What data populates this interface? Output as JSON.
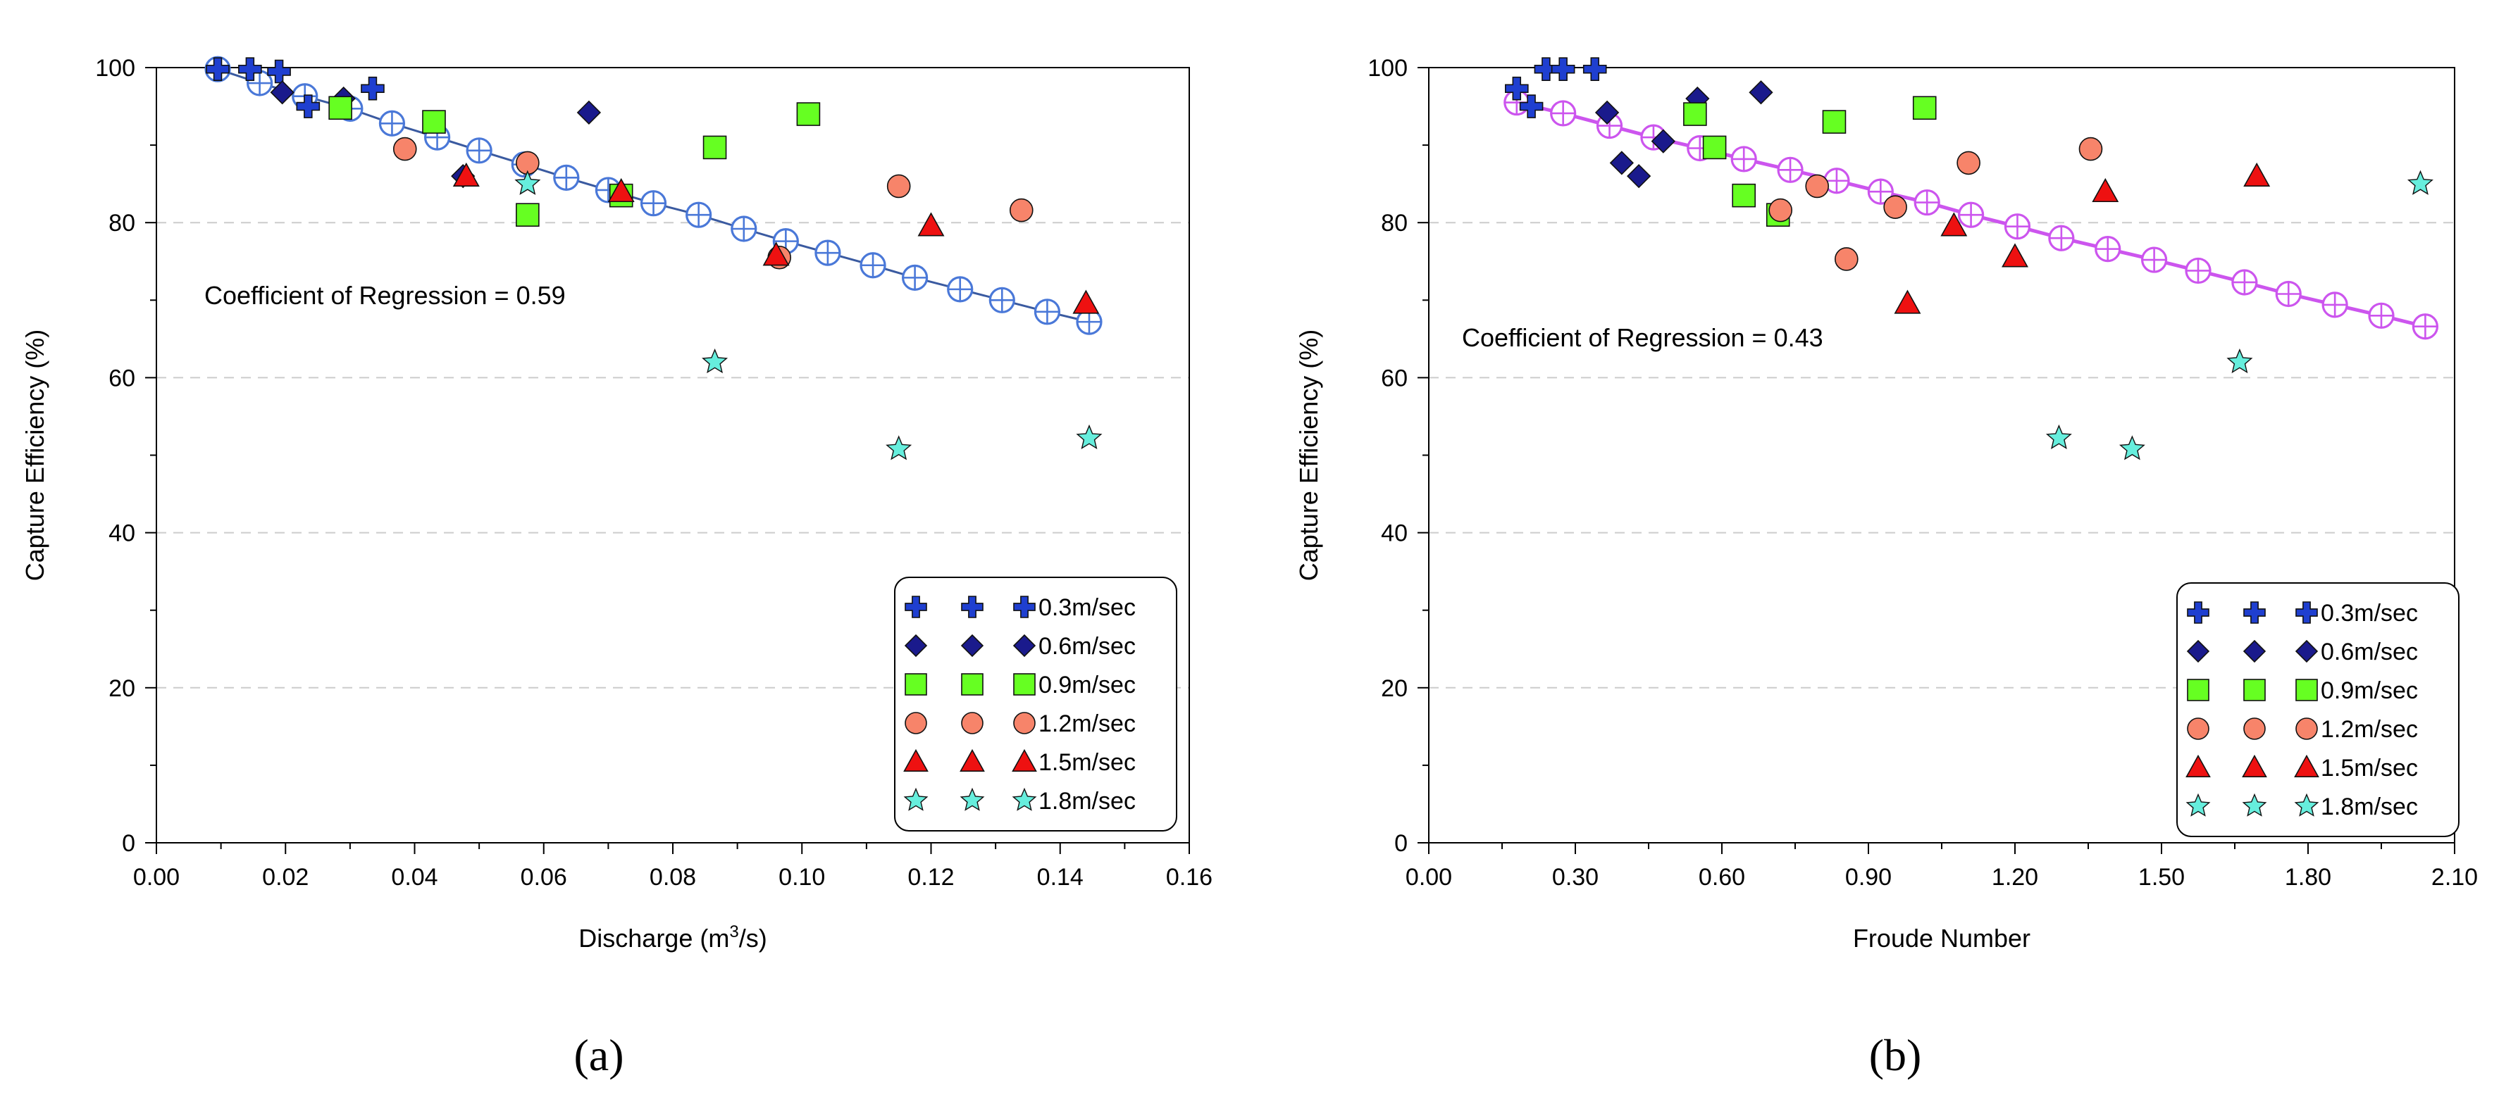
{
  "colors": {
    "s03": "#1f3fd0",
    "s06": "#1a1a8c",
    "s09": "#66ff22",
    "s12": "#f7846a",
    "s15": "#ee1111",
    "s18": "#66eedd",
    "fit_a": "#4a78d8",
    "fit_a_line": "#3a5aa0",
    "fit_b": "#cc55ee",
    "grid": "#cccccc"
  },
  "chart_data": [
    {
      "id": "a",
      "type": "scatter",
      "panel_label": "(a)",
      "xlabel_main": "Discharge (m",
      "xlabel_sup": "3",
      "xlabel_tail": "/s)",
      "ylabel": "Capture Efficiency (%)",
      "xlim": [
        0,
        0.16
      ],
      "ylim": [
        0,
        100
      ],
      "xticks": [
        0,
        0.02,
        0.04,
        0.06,
        0.08,
        0.1,
        0.12,
        0.14,
        0.16
      ],
      "xtick_labels": [
        "0.00",
        "0.02",
        "0.04",
        "0.06",
        "0.08",
        "0.10",
        "0.12",
        "0.14",
        "0.16"
      ],
      "yticks": [
        0,
        20,
        40,
        60,
        80,
        100
      ],
      "ytick_labels": [
        "0",
        "20",
        "40",
        "60",
        "80",
        "100"
      ],
      "grid": "horizontal dashed",
      "annotation": "Coefficient of Regression = 0.59",
      "legend_position": "bottom-right",
      "series": [
        {
          "name": "0.3m/sec",
          "marker": "plus",
          "color_key": "s03",
          "points": [
            [
              0.0095,
              99.8
            ],
            [
              0.0145,
              99.8
            ],
            [
              0.019,
              99.5
            ],
            [
              0.0235,
              95.0
            ],
            [
              0.0335,
              97.3
            ]
          ]
        },
        {
          "name": "0.6m/sec",
          "marker": "diamond",
          "color_key": "s06",
          "points": [
            [
              0.0195,
              96.8
            ],
            [
              0.029,
              96.0
            ],
            [
              0.0475,
              86.0
            ],
            [
              0.067,
              94.2
            ]
          ]
        },
        {
          "name": "0.9m/sec",
          "marker": "square",
          "color_key": "s09",
          "points": [
            [
              0.0285,
              94.8
            ],
            [
              0.043,
              93.0
            ],
            [
              0.0575,
              81.0
            ],
            [
              0.072,
              83.5
            ],
            [
              0.0865,
              89.7
            ],
            [
              0.101,
              94.0
            ]
          ]
        },
        {
          "name": "1.2m/sec",
          "marker": "circle",
          "color_key": "s12",
          "points": [
            [
              0.0385,
              89.5
            ],
            [
              0.0575,
              87.7
            ],
            [
              0.0965,
              75.5
            ],
            [
              0.115,
              84.7
            ],
            [
              0.134,
              81.6
            ]
          ]
        },
        {
          "name": "1.5m/sec",
          "marker": "triangle",
          "color_key": "s15",
          "points": [
            [
              0.048,
              86.0
            ],
            [
              0.072,
              84.0
            ],
            [
              0.096,
              75.8
            ],
            [
              0.12,
              79.6
            ],
            [
              0.144,
              69.6
            ]
          ]
        },
        {
          "name": "1.8m/sec",
          "marker": "star",
          "color_key": "s18",
          "points": [
            [
              0.0575,
              85.0
            ],
            [
              0.0865,
              62.0
            ],
            [
              0.115,
              50.8
            ],
            [
              0.1445,
              52.2
            ]
          ]
        }
      ],
      "fit": {
        "color_key": "fit_a",
        "line_color_key": "fit_a_line",
        "x": [
          0.0095,
          0.016,
          0.023,
          0.03,
          0.0365,
          0.0435,
          0.05,
          0.057,
          0.0635,
          0.07,
          0.077,
          0.084,
          0.091,
          0.0975,
          0.104,
          0.111,
          0.1175,
          0.1245,
          0.131,
          0.138,
          0.1445
        ],
        "y": [
          99.8,
          98.0,
          96.3,
          94.7,
          92.8,
          91.0,
          89.3,
          87.5,
          85.8,
          84.2,
          82.5,
          81.0,
          79.2,
          77.6,
          76.1,
          74.5,
          72.9,
          71.4,
          70.0,
          68.5,
          67.2
        ]
      }
    },
    {
      "id": "b",
      "type": "scatter",
      "panel_label": "(b)",
      "xlabel_main": "Froude Number",
      "xlabel_sup": "",
      "xlabel_tail": "",
      "ylabel": "Capture Efficiency (%)",
      "xlim": [
        0,
        2.1
      ],
      "ylim": [
        0,
        100
      ],
      "xticks": [
        0,
        0.3,
        0.6,
        0.9,
        1.2,
        1.5,
        1.8,
        2.1
      ],
      "xtick_labels": [
        "0.00",
        "0.30",
        "0.60",
        "0.90",
        "1.20",
        "1.50",
        "1.80",
        "2.10"
      ],
      "yticks": [
        0,
        20,
        40,
        60,
        80,
        100
      ],
      "ytick_labels": [
        "0",
        "20",
        "40",
        "60",
        "80",
        "100"
      ],
      "grid": "horizontal dashed",
      "annotation": "Coefficient of Regression = 0.43",
      "legend_position": "bottom-right",
      "series": [
        {
          "name": "0.3m/sec",
          "marker": "plus",
          "color_key": "s03",
          "points": [
            [
              0.18,
              97.3
            ],
            [
              0.21,
              95.0
            ],
            [
              0.24,
              99.8
            ],
            [
              0.275,
              99.8
            ],
            [
              0.34,
              99.8
            ]
          ]
        },
        {
          "name": "0.6m/sec",
          "marker": "diamond",
          "color_key": "s06",
          "points": [
            [
              0.365,
              94.2
            ],
            [
              0.395,
              87.7
            ],
            [
              0.43,
              86.0
            ],
            [
              0.48,
              90.5
            ],
            [
              0.55,
              96.0
            ],
            [
              0.68,
              96.8
            ]
          ]
        },
        {
          "name": "0.9m/sec",
          "marker": "square",
          "color_key": "s09",
          "points": [
            [
              0.545,
              94.0
            ],
            [
              0.585,
              89.7
            ],
            [
              0.645,
              83.5
            ],
            [
              0.715,
              81.0
            ],
            [
              0.83,
              93.0
            ],
            [
              1.015,
              94.8
            ]
          ]
        },
        {
          "name": "1.2m/sec",
          "marker": "circle",
          "color_key": "s12",
          "points": [
            [
              0.72,
              81.6
            ],
            [
              0.795,
              84.7
            ],
            [
              0.855,
              75.3
            ],
            [
              0.955,
              82.0
            ],
            [
              1.105,
              87.7
            ],
            [
              1.355,
              89.5
            ]
          ]
        },
        {
          "name": "1.5m/sec",
          "marker": "triangle",
          "color_key": "s15",
          "points": [
            [
              0.98,
              69.6
            ],
            [
              1.075,
              79.6
            ],
            [
              1.2,
              75.6
            ],
            [
              1.385,
              84.0
            ],
            [
              1.695,
              86.0
            ]
          ]
        },
        {
          "name": "1.8m/sec",
          "marker": "star",
          "color_key": "s18",
          "points": [
            [
              1.29,
              52.2
            ],
            [
              1.44,
              50.8
            ],
            [
              1.66,
              62.0
            ],
            [
              2.03,
              85.0
            ]
          ]
        }
      ],
      "fit": {
        "color_key": "fit_b",
        "line_color_key": "fit_b",
        "x": [
          0.18,
          0.275,
          0.37,
          0.46,
          0.555,
          0.645,
          0.74,
          0.835,
          0.925,
          1.02,
          1.11,
          1.205,
          1.295,
          1.39,
          1.485,
          1.575,
          1.67,
          1.76,
          1.855,
          1.95,
          2.04
        ],
        "y": [
          95.5,
          94.1,
          92.5,
          91.0,
          89.6,
          88.2,
          86.8,
          85.4,
          84.0,
          82.6,
          81.0,
          79.5,
          78.0,
          76.6,
          75.2,
          73.8,
          72.3,
          70.8,
          69.4,
          68.0,
          66.6
        ]
      }
    }
  ]
}
